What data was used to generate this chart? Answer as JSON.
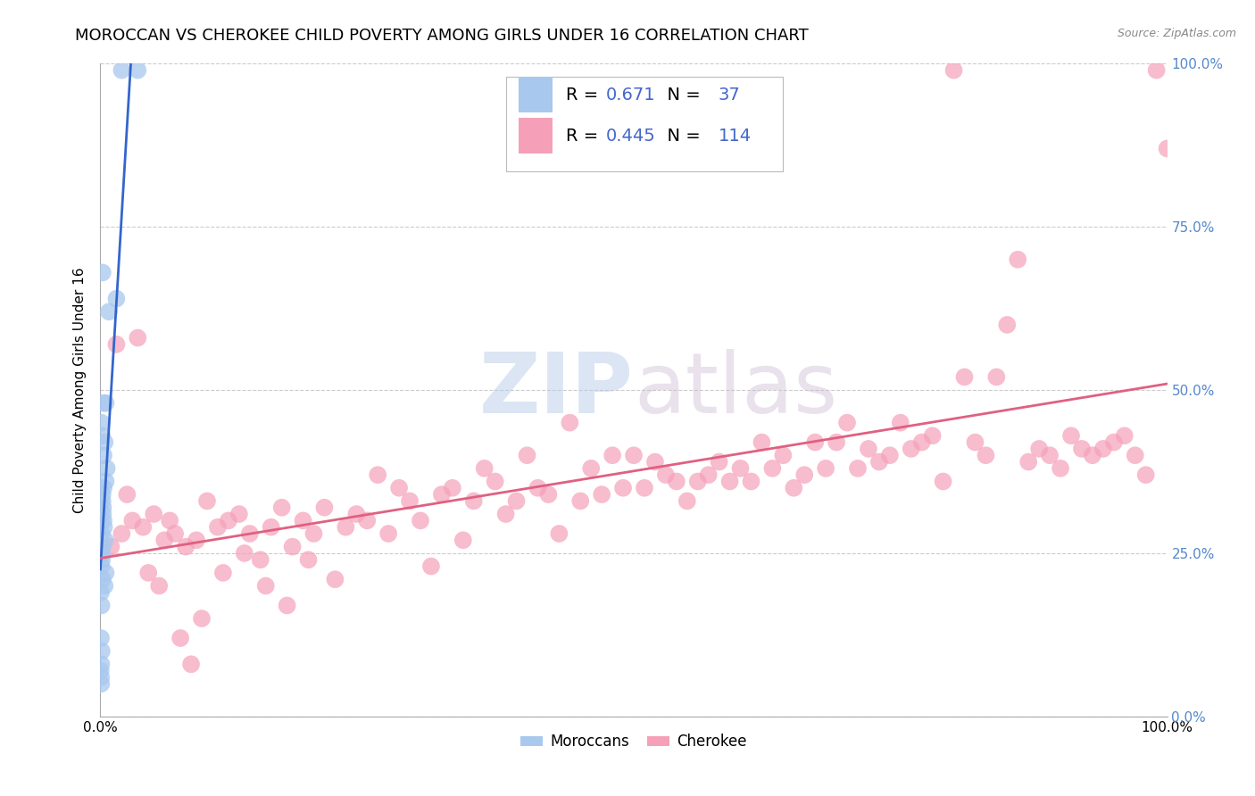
{
  "title": "MOROCCAN VS CHEROKEE CHILD POVERTY AMONG GIRLS UNDER 16 CORRELATION CHART",
  "source_text": "Source: ZipAtlas.com",
  "ylabel": "Child Poverty Among Girls Under 16",
  "watermark": "ZIPatlas",
  "moroccan_R": 0.671,
  "moroccan_N": 37,
  "cherokee_R": 0.445,
  "cherokee_N": 114,
  "moroccan_color": "#a8c8ee",
  "moroccan_line_color": "#3366cc",
  "cherokee_color": "#f5a0b8",
  "cherokee_line_color": "#e06080",
  "background_color": "#ffffff",
  "grid_color": "#cccccc",
  "right_tick_color": "#5588cc",
  "blue_text_color": "#4466cc",
  "title_fontsize": 13,
  "axis_label_fontsize": 11,
  "moroccan_x": [
    0.2,
    0.5,
    2.0,
    0.8,
    1.5,
    0.3,
    0.1,
    0.15,
    0.4,
    0.3,
    0.6,
    0.5,
    0.2,
    0.25,
    0.3,
    0.1,
    0.2,
    0.15,
    0.5,
    0.4,
    0.3,
    0.2,
    0.25,
    0.35,
    0.45,
    0.15,
    0.1,
    0.2,
    0.05,
    0.1,
    0.05,
    0.12,
    0.08,
    0.03,
    0.06,
    0.08,
    3.5
  ],
  "moroccan_y": [
    68.0,
    48.0,
    99.0,
    62.0,
    64.0,
    48.0,
    45.0,
    43.0,
    42.0,
    40.0,
    38.0,
    36.0,
    34.0,
    32.0,
    30.0,
    28.0,
    26.0,
    24.0,
    22.0,
    20.0,
    35.0,
    33.0,
    31.0,
    29.0,
    27.0,
    25.0,
    23.0,
    21.0,
    19.0,
    17.0,
    12.0,
    10.0,
    8.0,
    7.0,
    6.0,
    5.0,
    99.0
  ],
  "cherokee_x": [
    1.0,
    2.0,
    3.0,
    4.0,
    5.0,
    6.0,
    7.0,
    8.0,
    9.0,
    10.0,
    11.0,
    12.0,
    13.0,
    14.0,
    15.0,
    16.0,
    17.0,
    18.0,
    19.0,
    20.0,
    21.0,
    22.0,
    23.0,
    24.0,
    25.0,
    26.0,
    27.0,
    28.0,
    29.0,
    30.0,
    31.0,
    32.0,
    33.0,
    34.0,
    35.0,
    36.0,
    37.0,
    38.0,
    39.0,
    40.0,
    41.0,
    42.0,
    43.0,
    44.0,
    45.0,
    46.0,
    47.0,
    48.0,
    49.0,
    50.0,
    51.0,
    52.0,
    53.0,
    54.0,
    55.0,
    56.0,
    57.0,
    58.0,
    59.0,
    60.0,
    61.0,
    62.0,
    63.0,
    64.0,
    65.0,
    66.0,
    67.0,
    68.0,
    69.0,
    70.0,
    71.0,
    72.0,
    73.0,
    74.0,
    75.0,
    76.0,
    77.0,
    78.0,
    79.0,
    80.0,
    81.0,
    82.0,
    83.0,
    84.0,
    85.0,
    86.0,
    87.0,
    88.0,
    89.0,
    90.0,
    91.0,
    92.0,
    93.0,
    94.0,
    95.0,
    96.0,
    97.0,
    98.0,
    99.0,
    100.0,
    1.5,
    3.5,
    5.5,
    7.5,
    9.5,
    2.5,
    4.5,
    6.5,
    8.5,
    11.5,
    13.5,
    15.5,
    17.5,
    19.5
  ],
  "cherokee_y": [
    26.0,
    28.0,
    30.0,
    29.0,
    31.0,
    27.0,
    28.0,
    26.0,
    27.0,
    33.0,
    29.0,
    30.0,
    31.0,
    28.0,
    24.0,
    29.0,
    32.0,
    26.0,
    30.0,
    28.0,
    32.0,
    21.0,
    29.0,
    31.0,
    30.0,
    37.0,
    28.0,
    35.0,
    33.0,
    30.0,
    23.0,
    34.0,
    35.0,
    27.0,
    33.0,
    38.0,
    36.0,
    31.0,
    33.0,
    40.0,
    35.0,
    34.0,
    28.0,
    45.0,
    33.0,
    38.0,
    34.0,
    40.0,
    35.0,
    40.0,
    35.0,
    39.0,
    37.0,
    36.0,
    33.0,
    36.0,
    37.0,
    39.0,
    36.0,
    38.0,
    36.0,
    42.0,
    38.0,
    40.0,
    35.0,
    37.0,
    42.0,
    38.0,
    42.0,
    45.0,
    38.0,
    41.0,
    39.0,
    40.0,
    45.0,
    41.0,
    42.0,
    43.0,
    36.0,
    99.0,
    52.0,
    42.0,
    40.0,
    52.0,
    60.0,
    70.0,
    39.0,
    41.0,
    40.0,
    38.0,
    43.0,
    41.0,
    40.0,
    41.0,
    42.0,
    43.0,
    40.0,
    37.0,
    99.0,
    87.0,
    57.0,
    58.0,
    20.0,
    12.0,
    15.0,
    34.0,
    22.0,
    30.0,
    8.0,
    22.0,
    25.0,
    20.0,
    17.0,
    24.0
  ]
}
